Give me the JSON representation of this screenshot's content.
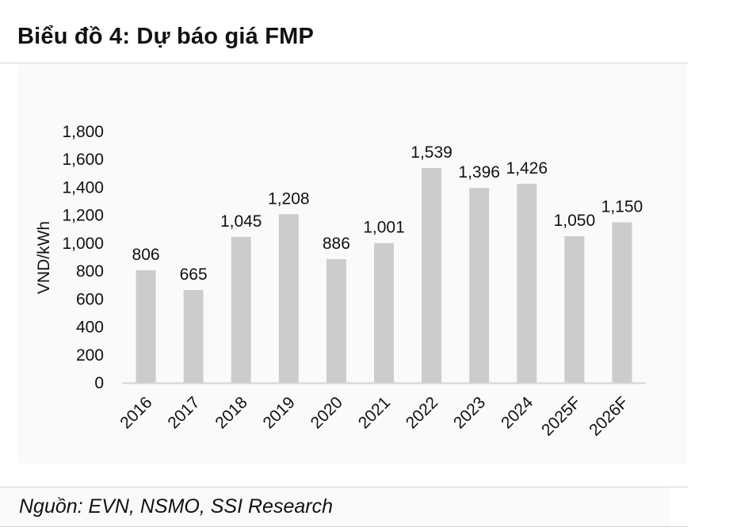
{
  "header": {
    "title": "Biểu đồ 4: Dự báo giá FMP"
  },
  "footer": {
    "source": "Nguồn: EVN, NSMO, SSI Research"
  },
  "colors": {
    "bar": "#cccccc",
    "axis": "#d4d4d4",
    "text": "#111111"
  },
  "chart_data": {
    "type": "bar",
    "title": "Biểu đồ 4: Dự báo giá FMP",
    "xlabel": "",
    "ylabel": "VND/kWh",
    "categories": [
      "2016",
      "2017",
      "2018",
      "2019",
      "2020",
      "2021",
      "2022",
      "2023",
      "2024",
      "2025F",
      "2026F"
    ],
    "values": [
      806,
      665,
      1045,
      1208,
      886,
      1001,
      1539,
      1396,
      1426,
      1050,
      1150
    ],
    "value_labels": [
      "806",
      "665",
      "1,045",
      "1,208",
      "886",
      "1,001",
      "1,539",
      "1,396",
      "1,426",
      "1,050",
      "1,150"
    ],
    "ylim": [
      0,
      1800
    ],
    "yticks": [
      0,
      200,
      400,
      600,
      800,
      1000,
      1200,
      1400,
      1600,
      1800
    ],
    "ytick_labels": [
      "0",
      "200",
      "400",
      "600",
      "800",
      "1,000",
      "1,200",
      "1,400",
      "1,600",
      "1,800"
    ],
    "grid": false,
    "legend": "none"
  }
}
